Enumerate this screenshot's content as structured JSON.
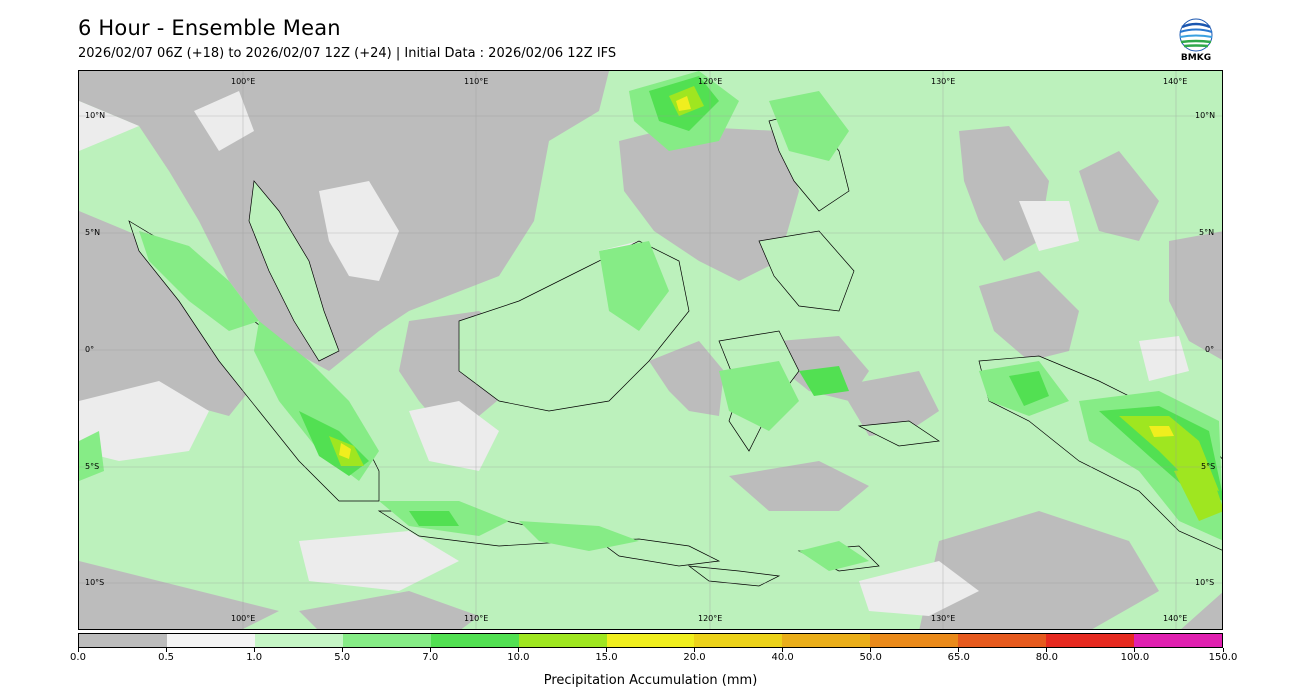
{
  "header": {
    "title": "6 Hour - Ensemble Mean",
    "subtitle": "2026/02/07 06Z (+18) to 2026/02/07 12Z (+24) | Initial Data : 2026/02/06 12Z IFS"
  },
  "logo": {
    "text": "BMKG",
    "icon": "bmkg-logo-icon"
  },
  "map": {
    "lon_labels_top": [
      "100°E",
      "110°E",
      "120°E",
      "130°E",
      "140°E"
    ],
    "lon_labels_bottom": [
      "100°E",
      "110°E",
      "120°E",
      "130°E",
      "140°E"
    ],
    "lat_labels_left": [
      "10°N",
      "5°N",
      "0°",
      "5°S",
      "10°S"
    ],
    "lat_labels_right": [
      "10°N",
      "5°N",
      "0°",
      "5°S",
      "10°S"
    ]
  },
  "colorbar": {
    "label": "Precipitation Accumulation (mm)",
    "ticks": [
      "0.0",
      "0.5",
      "1.0",
      "5.0",
      "7.0",
      "10.0",
      "15.0",
      "20.0",
      "40.0",
      "50.0",
      "65.0",
      "80.0",
      "100.0",
      "150.0"
    ],
    "colors": [
      "#bcbcbc",
      "#f4f4f4",
      "#c5f5c5",
      "#86ec86",
      "#52e052",
      "#9fe620",
      "#f0ee1e",
      "#ecd21a",
      "#eaae1a",
      "#ea8a1a",
      "#e65a1e",
      "#e62a20",
      "#e020b0"
    ]
  }
}
